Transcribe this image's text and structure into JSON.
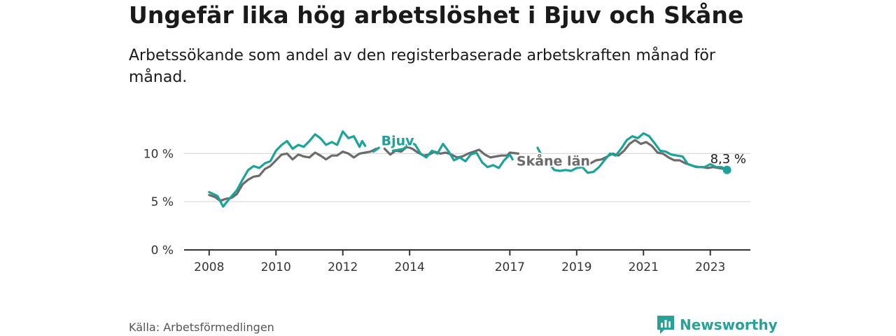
{
  "title": "Ungefär lika hög arbetslöshet i Bjuv och Skåne",
  "subtitle": "Arbetssökande som andel av den registerbaserade arbetskraften månad för månad.",
  "source": "Källa: Arbetsförmedlingen",
  "brand": {
    "name": "Newsworthy",
    "icon": "newsworthy-logo-icon",
    "color": "#2aa198"
  },
  "chart_data": {
    "type": "line",
    "title": "Ungefär lika hög arbetslöshet i Bjuv och Skåne",
    "xlabel": "",
    "ylabel": "",
    "xlim": [
      2007.25,
      2024.2
    ],
    "ylim": [
      0,
      12.5
    ],
    "yticks": [
      {
        "value": 0,
        "label": "0 %"
      },
      {
        "value": 5,
        "label": "5 %"
      },
      {
        "value": 10,
        "label": "10 %"
      }
    ],
    "xticks": [
      {
        "value": 2008,
        "label": "2008"
      },
      {
        "value": 2010,
        "label": "2010"
      },
      {
        "value": 2012,
        "label": "2012"
      },
      {
        "value": 2014,
        "label": "2014"
      },
      {
        "value": 2017,
        "label": "2017"
      },
      {
        "value": 2019,
        "label": "2019"
      },
      {
        "value": 2021,
        "label": "2021"
      },
      {
        "value": 2023,
        "label": "2023"
      }
    ],
    "grid": true,
    "series": [
      {
        "name": "Bjuv",
        "label": "Bjuv",
        "color": "#1aa39a",
        "segments": [
          [
            [
              2008.0,
              6.0
            ],
            [
              2008.25,
              5.6
            ],
            [
              2008.42,
              4.5
            ],
            [
              2008.58,
              5.2
            ],
            [
              2008.83,
              6.2
            ],
            [
              2009.0,
              7.3
            ],
            [
              2009.17,
              8.3
            ],
            [
              2009.33,
              8.7
            ],
            [
              2009.5,
              8.5
            ],
            [
              2009.67,
              9.0
            ],
            [
              2009.83,
              9.2
            ],
            [
              2010.0,
              10.3
            ],
            [
              2010.17,
              10.9
            ],
            [
              2010.33,
              11.3
            ],
            [
              2010.5,
              10.5
            ],
            [
              2010.67,
              10.9
            ],
            [
              2010.83,
              10.7
            ],
            [
              2011.0,
              11.3
            ],
            [
              2011.17,
              12.0
            ],
            [
              2011.33,
              11.6
            ],
            [
              2011.5,
              10.9
            ],
            [
              2011.67,
              11.2
            ],
            [
              2011.83,
              10.9
            ],
            [
              2012.0,
              12.3
            ],
            [
              2012.17,
              11.6
            ],
            [
              2012.33,
              11.8
            ],
            [
              2012.5,
              10.7
            ],
            [
              2012.58,
              11.3
            ],
            [
              2012.67,
              10.8
            ]
          ],
          [
            [
              2012.92,
              10.2
            ],
            [
              2013.08,
              10.6
            ]
          ],
          [
            [
              2013.5,
              10.3
            ],
            [
              2013.67,
              10.4
            ],
            [
              2013.83,
              10.5
            ],
            [
              2014.0,
              11.3
            ],
            [
              2014.17,
              10.9
            ],
            [
              2014.33,
              10.0
            ],
            [
              2014.5,
              9.6
            ],
            [
              2014.67,
              10.3
            ],
            [
              2014.83,
              10.0
            ],
            [
              2015.0,
              11.0
            ],
            [
              2015.17,
              10.2
            ],
            [
              2015.33,
              9.3
            ],
            [
              2015.5,
              9.6
            ],
            [
              2015.67,
              9.2
            ],
            [
              2015.83,
              9.9
            ],
            [
              2016.0,
              10.1
            ],
            [
              2016.17,
              9.1
            ],
            [
              2016.33,
              8.6
            ],
            [
              2016.5,
              8.8
            ],
            [
              2016.67,
              8.5
            ],
            [
              2016.83,
              9.3
            ],
            [
              2017.0,
              9.9
            ],
            [
              2017.08,
              9.4
            ]
          ],
          [
            [
              2017.83,
              10.6
            ],
            [
              2017.92,
              10.0
            ]
          ],
          [
            [
              2018.17,
              9.0
            ],
            [
              2018.33,
              8.3
            ],
            [
              2018.5,
              8.2
            ],
            [
              2018.67,
              8.3
            ],
            [
              2018.83,
              8.2
            ],
            [
              2019.0,
              8.5
            ],
            [
              2019.17,
              8.6
            ],
            [
              2019.33,
              8.0
            ],
            [
              2019.5,
              8.1
            ],
            [
              2019.67,
              8.6
            ],
            [
              2019.83,
              9.3
            ],
            [
              2020.0,
              10.0
            ],
            [
              2020.17,
              9.8
            ],
            [
              2020.33,
              10.5
            ],
            [
              2020.5,
              11.4
            ],
            [
              2020.67,
              11.8
            ],
            [
              2020.83,
              11.6
            ],
            [
              2021.0,
              12.1
            ],
            [
              2021.17,
              11.8
            ],
            [
              2021.33,
              11.1
            ],
            [
              2021.5,
              10.3
            ],
            [
              2021.67,
              10.2
            ],
            [
              2021.83,
              9.9
            ],
            [
              2022.0,
              9.8
            ],
            [
              2022.17,
              9.7
            ],
            [
              2022.33,
              8.9
            ],
            [
              2022.5,
              8.7
            ],
            [
              2022.67,
              8.6
            ],
            [
              2022.83,
              8.6
            ],
            [
              2023.0,
              8.9
            ],
            [
              2023.17,
              8.6
            ],
            [
              2023.33,
              8.6
            ],
            [
              2023.5,
              8.3
            ]
          ]
        ]
      },
      {
        "name": "Skåne län",
        "label": "Skåne län",
        "color": "#6b6b6b",
        "segments": [
          [
            [
              2008.0,
              5.7
            ],
            [
              2008.17,
              5.5
            ],
            [
              2008.33,
              5.1
            ],
            [
              2008.5,
              5.3
            ],
            [
              2008.67,
              5.4
            ],
            [
              2008.83,
              5.8
            ],
            [
              2009.0,
              6.8
            ],
            [
              2009.17,
              7.3
            ],
            [
              2009.33,
              7.6
            ],
            [
              2009.5,
              7.7
            ],
            [
              2009.67,
              8.4
            ],
            [
              2009.83,
              8.7
            ],
            [
              2010.0,
              9.3
            ],
            [
              2010.17,
              9.9
            ],
            [
              2010.33,
              10.0
            ],
            [
              2010.5,
              9.4
            ],
            [
              2010.67,
              9.9
            ],
            [
              2010.83,
              9.7
            ],
            [
              2011.0,
              9.6
            ],
            [
              2011.17,
              10.1
            ],
            [
              2011.33,
              9.8
            ],
            [
              2011.5,
              9.4
            ],
            [
              2011.67,
              9.8
            ],
            [
              2011.83,
              9.8
            ],
            [
              2012.0,
              10.2
            ],
            [
              2012.17,
              10.0
            ],
            [
              2012.33,
              9.6
            ],
            [
              2012.5,
              10.0
            ],
            [
              2012.67,
              10.1
            ],
            [
              2012.83,
              10.2
            ],
            [
              2013.0,
              10.5
            ]
          ],
          [
            [
              2013.25,
              10.5
            ],
            [
              2013.42,
              9.9
            ],
            [
              2013.58,
              10.3
            ],
            [
              2013.75,
              10.2
            ],
            [
              2013.92,
              10.7
            ],
            [
              2014.08,
              10.5
            ],
            [
              2014.25,
              10.1
            ],
            [
              2014.42,
              9.8
            ],
            [
              2014.58,
              9.9
            ],
            [
              2014.75,
              10.2
            ],
            [
              2014.92,
              10.0
            ],
            [
              2015.08,
              10.1
            ],
            [
              2015.25,
              9.9
            ],
            [
              2015.42,
              9.6
            ],
            [
              2015.58,
              9.7
            ],
            [
              2015.75,
              10.0
            ],
            [
              2015.92,
              10.2
            ],
            [
              2016.08,
              10.4
            ],
            [
              2016.25,
              9.9
            ],
            [
              2016.42,
              9.6
            ],
            [
              2016.58,
              9.7
            ],
            [
              2016.75,
              9.8
            ],
            [
              2016.92,
              9.8
            ],
            [
              2017.0,
              10.1
            ],
            [
              2017.25,
              10.0
            ]
          ],
          [
            [
              2019.42,
              9.0
            ],
            [
              2019.58,
              9.3
            ],
            [
              2019.75,
              9.4
            ],
            [
              2019.92,
              9.7
            ],
            [
              2020.08,
              10.0
            ],
            [
              2020.25,
              9.8
            ],
            [
              2020.42,
              10.3
            ],
            [
              2020.58,
              11.0
            ],
            [
              2020.75,
              11.4
            ],
            [
              2020.92,
              11.0
            ],
            [
              2021.08,
              11.2
            ],
            [
              2021.25,
              10.8
            ],
            [
              2021.42,
              10.1
            ],
            [
              2021.58,
              10.0
            ],
            [
              2021.75,
              9.6
            ],
            [
              2021.92,
              9.3
            ],
            [
              2022.08,
              9.3
            ],
            [
              2022.25,
              9.0
            ],
            [
              2022.42,
              8.8
            ],
            [
              2022.58,
              8.6
            ],
            [
              2022.75,
              8.6
            ],
            [
              2022.92,
              8.5
            ],
            [
              2023.08,
              8.6
            ],
            [
              2023.25,
              8.5
            ],
            [
              2023.42,
              8.4
            ]
          ]
        ]
      }
    ],
    "annotations": [
      {
        "text": "Bjuv",
        "series": "Bjuv",
        "x": 2013.15,
        "y": 11.3
      },
      {
        "text": "Skåne län",
        "series": "Skåne län",
        "x": 2017.2,
        "y": 9.2
      },
      {
        "text": "8,3 %",
        "series": "Bjuv",
        "x": 2023.5,
        "y": 8.3,
        "marker": true
      }
    ]
  }
}
